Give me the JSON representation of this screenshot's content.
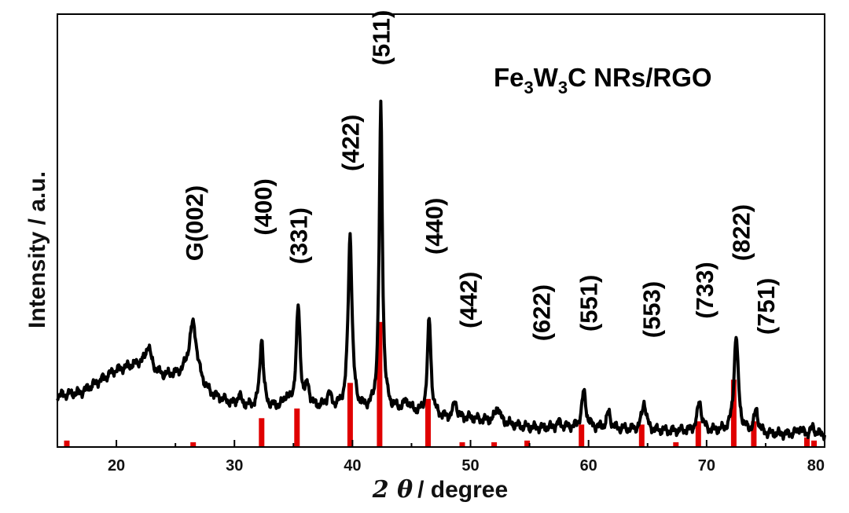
{
  "chart_data": {
    "type": "line",
    "title": "Fe3W3C NRs/RGO",
    "title_parts": [
      "Fe",
      "3",
      "W",
      "3",
      "C NRs/RGO"
    ],
    "xlabel_symbol": "2 θ",
    "xlabel_unit": "/ degree",
    "ylabel": "Intensity / a.u.",
    "xlim": [
      15,
      80
    ],
    "xticks": [
      20,
      30,
      40,
      50,
      60,
      70,
      80
    ],
    "grid": false,
    "colors": {
      "pattern": "#000000",
      "reference": "#e00000"
    },
    "series": [
      {
        "kind": "pattern",
        "baseline": [
          [
            15,
            0.16
          ],
          [
            17,
            0.17
          ],
          [
            20,
            0.24
          ],
          [
            22,
            0.26
          ],
          [
            24,
            0.22
          ],
          [
            26,
            0.22
          ],
          [
            28,
            0.16
          ],
          [
            30,
            0.13
          ],
          [
            32,
            0.12
          ],
          [
            34,
            0.12
          ],
          [
            36,
            0.12
          ],
          [
            38,
            0.12
          ],
          [
            40,
            0.11
          ],
          [
            44,
            0.11
          ],
          [
            48,
            0.09
          ],
          [
            50,
            0.09
          ],
          [
            55,
            0.06
          ],
          [
            60,
            0.06
          ],
          [
            65,
            0.05
          ],
          [
            70,
            0.05
          ],
          [
            75,
            0.04
          ],
          [
            80,
            0.04
          ]
        ],
        "peaks": [
          {
            "x": 22.7,
            "h": 0.07,
            "w": 0.25
          },
          {
            "x": 26.5,
            "h": 0.18,
            "w": 0.4
          },
          {
            "x": 30.4,
            "h": 0.03,
            "w": 0.2
          },
          {
            "x": 32.3,
            "h": 0.22,
            "w": 0.18
          },
          {
            "x": 34.4,
            "h": 0.03,
            "w": 0.2
          },
          {
            "x": 35.4,
            "h": 0.31,
            "w": 0.2
          },
          {
            "x": 36.2,
            "h": 0.06,
            "w": 0.2
          },
          {
            "x": 38.0,
            "h": 0.04,
            "w": 0.22
          },
          {
            "x": 39.8,
            "h": 0.55,
            "w": 0.2
          },
          {
            "x": 42.4,
            "h": 0.95,
            "w": 0.16
          },
          {
            "x": 44.6,
            "h": 0.03,
            "w": 0.3
          },
          {
            "x": 46.5,
            "h": 0.3,
            "w": 0.18
          },
          {
            "x": 48.7,
            "h": 0.05,
            "w": 0.18
          },
          {
            "x": 52.3,
            "h": 0.05,
            "w": 0.22
          },
          {
            "x": 57.5,
            "h": 0.015,
            "w": 0.25
          },
          {
            "x": 59.6,
            "h": 0.11,
            "w": 0.22
          },
          {
            "x": 61.7,
            "h": 0.05,
            "w": 0.2
          },
          {
            "x": 64.7,
            "h": 0.09,
            "w": 0.22
          },
          {
            "x": 69.4,
            "h": 0.09,
            "w": 0.22
          },
          {
            "x": 72.5,
            "h": 0.3,
            "w": 0.22
          },
          {
            "x": 74.2,
            "h": 0.07,
            "w": 0.2
          },
          {
            "x": 77.9,
            "h": 0.02,
            "w": 0.2
          },
          {
            "x": 79.0,
            "h": 0.02,
            "w": 0.2
          }
        ]
      },
      {
        "kind": "reference",
        "sticks": [
          {
            "x": 15.8,
            "h": 0.02
          },
          {
            "x": 26.5,
            "h": 0.015
          },
          {
            "x": 32.3,
            "h": 0.09
          },
          {
            "x": 35.3,
            "h": 0.12
          },
          {
            "x": 39.8,
            "h": 0.2
          },
          {
            "x": 42.3,
            "h": 0.39
          },
          {
            "x": 46.4,
            "h": 0.15
          },
          {
            "x": 49.3,
            "h": 0.015
          },
          {
            "x": 52.0,
            "h": 0.015
          },
          {
            "x": 54.8,
            "h": 0.02
          },
          {
            "x": 59.4,
            "h": 0.07
          },
          {
            "x": 64.5,
            "h": 0.07
          },
          {
            "x": 67.4,
            "h": 0.015
          },
          {
            "x": 69.3,
            "h": 0.08
          },
          {
            "x": 72.3,
            "h": 0.21
          },
          {
            "x": 74.0,
            "h": 0.08
          },
          {
            "x": 78.5,
            "h": 0.03
          },
          {
            "x": 79.1,
            "h": 0.02
          }
        ]
      }
    ],
    "annotations": [
      {
        "text": "G(002)",
        "x": 26.6,
        "y": 0.58
      },
      {
        "text": "(400)",
        "x": 32.4,
        "y": 0.66
      },
      {
        "text": "(331)",
        "x": 35.4,
        "y": 0.57
      },
      {
        "text": "(422)",
        "x": 39.8,
        "y": 0.86
      },
      {
        "text": "(511)",
        "x": 42.4,
        "y": 1.19
      },
      {
        "text": "(440)",
        "x": 46.9,
        "y": 0.6
      },
      {
        "text": "(442)",
        "x": 49.8,
        "y": 0.37
      },
      {
        "text": "(622)",
        "x": 56.0,
        "y": 0.33
      },
      {
        "text": "(551)",
        "x": 60.0,
        "y": 0.36
      },
      {
        "text": "(553)",
        "x": 65.3,
        "y": 0.34
      },
      {
        "text": "(733)",
        "x": 69.8,
        "y": 0.4
      },
      {
        "text": "(822)",
        "x": 72.9,
        "y": 0.58
      },
      {
        "text": "(751)",
        "x": 75.0,
        "y": 0.35
      }
    ]
  }
}
